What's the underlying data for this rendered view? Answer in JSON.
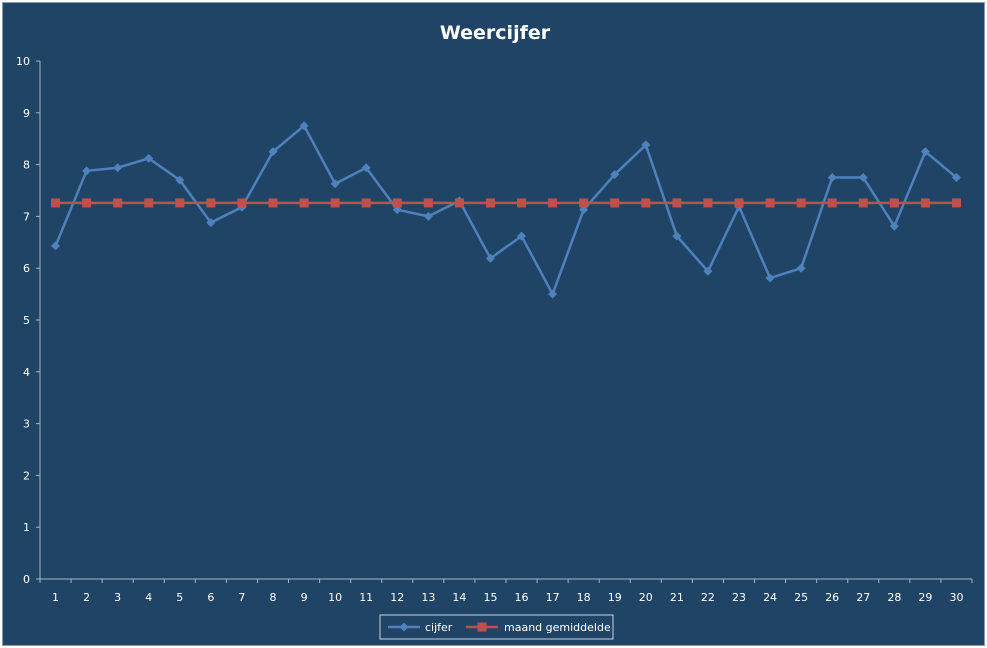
{
  "chart_data": {
    "type": "line",
    "title": "Weercijfer",
    "xlabel": "",
    "ylabel": "",
    "categories": [
      "1",
      "2",
      "3",
      "4",
      "5",
      "6",
      "7",
      "8",
      "9",
      "10",
      "11",
      "12",
      "13",
      "14",
      "15",
      "16",
      "17",
      "18",
      "19",
      "20",
      "21",
      "22",
      "23",
      "24",
      "25",
      "26",
      "27",
      "28",
      "29",
      "30"
    ],
    "ylim": [
      0,
      10
    ],
    "yticks": [
      "0",
      "1",
      "2",
      "3",
      "4",
      "5",
      "6",
      "7",
      "8",
      "9",
      "10"
    ],
    "grid": false,
    "legend_position": "bottom",
    "series": [
      {
        "name": "cijfer",
        "color": "#4f81bd",
        "marker": "diamond",
        "values": [
          6.43,
          7.88,
          7.94,
          8.12,
          7.7,
          6.88,
          7.18,
          8.25,
          8.75,
          7.63,
          7.94,
          7.13,
          7.0,
          7.3,
          6.19,
          6.62,
          5.5,
          7.13,
          7.81,
          8.38,
          6.62,
          5.94,
          7.19,
          5.81,
          6.0,
          7.75,
          7.75,
          6.81,
          8.25,
          7.75
        ]
      },
      {
        "name": "maand gemiddelde",
        "color": "#c0504d",
        "marker": "square",
        "values": [
          7.26,
          7.26,
          7.26,
          7.26,
          7.26,
          7.26,
          7.26,
          7.26,
          7.26,
          7.26,
          7.26,
          7.26,
          7.26,
          7.26,
          7.26,
          7.26,
          7.26,
          7.26,
          7.26,
          7.26,
          7.26,
          7.26,
          7.26,
          7.26,
          7.26,
          7.26,
          7.26,
          7.26,
          7.26,
          7.26
        ]
      }
    ]
  },
  "colors": {
    "background": "#1f4466",
    "axis": "#a6b6c6",
    "text": "#ffffff"
  }
}
